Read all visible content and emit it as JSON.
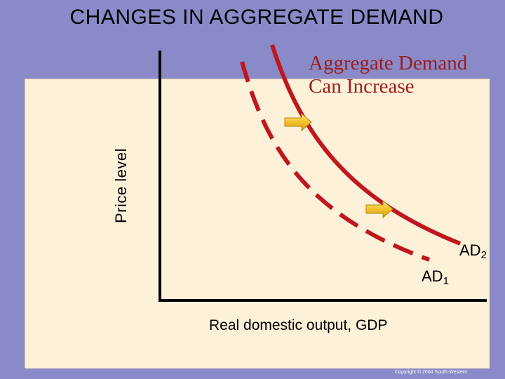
{
  "title": "CHANGES IN AGGREGATE DEMAND",
  "axes": {
    "y_label": "Price level",
    "x_label": "Real domestic output, GDP"
  },
  "annotation": {
    "line1": "Aggregate Demand",
    "line2": "Can Increase"
  },
  "curves": {
    "ad1": {
      "base": "AD",
      "sub": "1",
      "style": "dashed"
    },
    "ad2": {
      "base": "AD",
      "sub": "2",
      "style": "solid"
    }
  },
  "shift_direction": "right",
  "copyright": "Copyright © 2004 South-Western",
  "colors": {
    "background": "#8a8ac8",
    "panel": "#fdf1d9",
    "curve": "#c0161d",
    "annotation": "#9c1d1d",
    "arrow": "#f3c12a"
  }
}
